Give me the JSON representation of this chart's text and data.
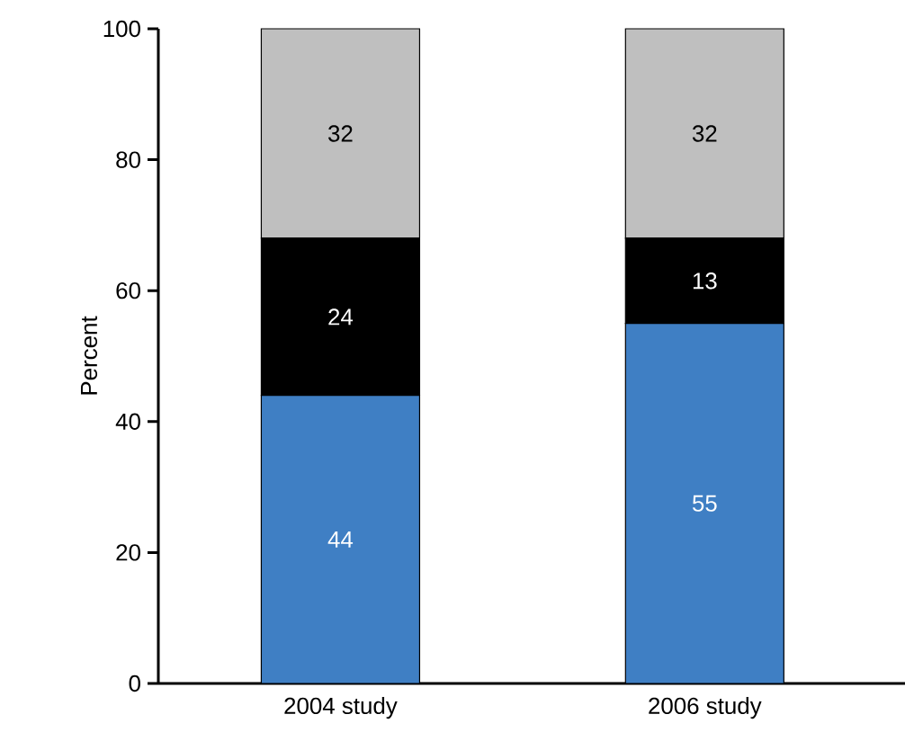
{
  "chart_data": {
    "type": "bar",
    "stacked": true,
    "ylabel": "Percent",
    "categories": [
      "2004 study",
      "2006 study"
    ],
    "series": [
      {
        "color": "#3f7fc4",
        "values": [
          44,
          55
        ]
      },
      {
        "color": "#000000",
        "values": [
          24,
          13
        ]
      },
      {
        "color": "#bfbfbf",
        "values": [
          32,
          32
        ]
      }
    ],
    "ylim": [
      0,
      100
    ],
    "yticks": [
      0,
      20,
      40,
      60,
      80,
      100
    ],
    "data_labels": true
  }
}
